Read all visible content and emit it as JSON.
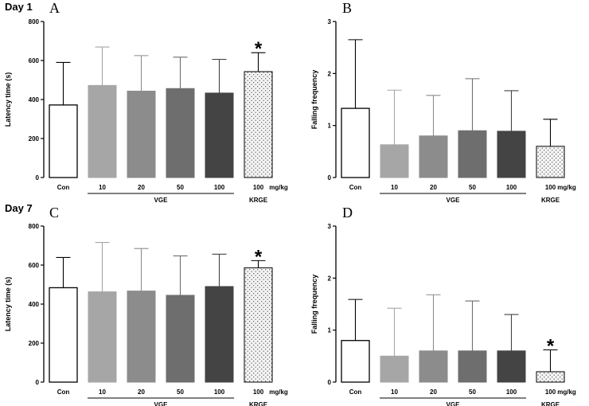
{
  "day_labels": [
    "Day 1",
    "Day 7"
  ],
  "colors": {
    "con": "#ffffff",
    "vge10": "#a6a6a6",
    "vge20": "#8c8c8c",
    "vge50": "#6e6e6e",
    "vge100": "#444444",
    "krge": "#f0f0f0",
    "axis": "#000000",
    "bar_border": "#555555"
  },
  "chart_data": [
    {
      "panel": "A",
      "type": "bar",
      "ylabel": "Latency time (s)",
      "ylim": [
        0,
        800
      ],
      "yticks": [
        "0",
        "200",
        "400",
        "600",
        "800"
      ],
      "categories": [
        "Con",
        "10",
        "20",
        "50",
        "100",
        "100"
      ],
      "values": [
        372,
        472,
        443,
        456,
        433,
        543
      ],
      "errors": [
        218,
        197,
        182,
        161,
        173,
        97
      ],
      "significant": [
        false,
        false,
        false,
        false,
        false,
        true
      ],
      "unit": "mg/kg",
      "group_labels": [
        "VGE",
        "KRGE"
      ]
    },
    {
      "panel": "B",
      "type": "bar",
      "ylabel": "Falling frequency",
      "ylim": [
        0,
        3
      ],
      "yticks": [
        "0",
        "1",
        "2",
        "3"
      ],
      "categories": [
        "Con",
        "10",
        "20",
        "50",
        "100",
        "100"
      ],
      "values": [
        1.33,
        0.63,
        0.8,
        0.9,
        0.89,
        0.6
      ],
      "errors": [
        1.32,
        1.05,
        0.78,
        1.0,
        0.78,
        0.52
      ],
      "significant": [
        false,
        false,
        false,
        false,
        false,
        false
      ],
      "unit": "mg/kg",
      "group_labels": [
        "VGE",
        "KRGE"
      ]
    },
    {
      "panel": "C",
      "type": "bar",
      "ylabel": "Latency time (s)",
      "ylim": [
        0,
        800
      ],
      "yticks": [
        "0",
        "200",
        "400",
        "600",
        "800"
      ],
      "categories": [
        "Con",
        "10",
        "20",
        "50",
        "100",
        "100"
      ],
      "values": [
        484,
        463,
        467,
        445,
        490,
        586
      ],
      "errors": [
        155,
        253,
        218,
        202,
        166,
        37
      ],
      "significant": [
        false,
        false,
        false,
        false,
        false,
        true
      ],
      "unit": "mg/kg",
      "group_labels": [
        "VGE",
        "KRGE"
      ]
    },
    {
      "panel": "D",
      "type": "bar",
      "ylabel": "Falling frequency",
      "ylim": [
        0,
        3
      ],
      "yticks": [
        "0",
        "1",
        "2",
        "3"
      ],
      "categories": [
        "Con",
        "10",
        "20",
        "50",
        "100",
        "100"
      ],
      "values": [
        0.8,
        0.5,
        0.6,
        0.6,
        0.6,
        0.2
      ],
      "errors": [
        0.79,
        0.92,
        1.08,
        0.96,
        0.7,
        0.42
      ],
      "significant": [
        false,
        false,
        false,
        false,
        false,
        true
      ],
      "unit": "mg/kg",
      "group_labels": [
        "VGE",
        "KRGE"
      ]
    }
  ]
}
